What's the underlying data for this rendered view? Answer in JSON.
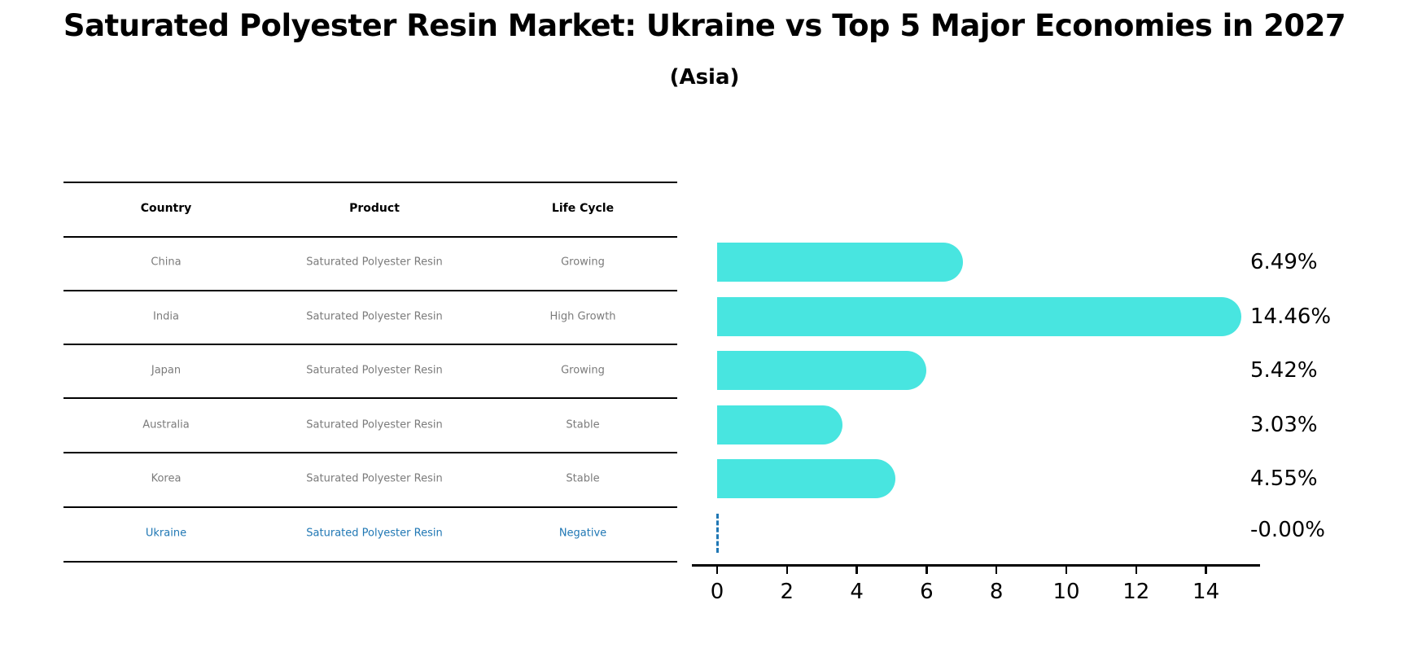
{
  "title": "Saturated Polyester Resin Market: Ukraine vs Top 5 Major Economies in 2027",
  "subtitle": "(Asia)",
  "colors": {
    "bar": "#48E5E0",
    "highlight_blue": "#1f77b4",
    "cell_text_gray": "#7b7b7b",
    "text_black": "#000000",
    "background": "#ffffff"
  },
  "table": {
    "headers": [
      "Country",
      "Product",
      "Life Cycle"
    ],
    "rows": [
      {
        "country": "China",
        "product": "Saturated Polyester Resin",
        "life_cycle": "Growing",
        "highlight": false
      },
      {
        "country": "India",
        "product": "Saturated Polyester Resin",
        "life_cycle": "High Growth",
        "highlight": false
      },
      {
        "country": "Japan",
        "product": "Saturated Polyester Resin",
        "life_cycle": "Growing",
        "highlight": false
      },
      {
        "country": "Australia",
        "product": "Saturated Polyester Resin",
        "life_cycle": "Stable",
        "highlight": false
      },
      {
        "country": "Korea",
        "product": "Saturated Polyester Resin",
        "life_cycle": "Stable",
        "highlight": false
      },
      {
        "country": "Ukraine",
        "product": "Saturated Polyester Resin",
        "life_cycle": "Negative",
        "highlight": true
      }
    ]
  },
  "chart_data": {
    "type": "bar",
    "orientation": "horizontal",
    "title": "Saturated Polyester Resin Market: Ukraine vs Top 5 Major Economies in 2027 (Asia)",
    "categories": [
      "China",
      "India",
      "Japan",
      "Australia",
      "Korea",
      "Ukraine"
    ],
    "values": [
      6.49,
      14.46,
      5.42,
      3.03,
      4.55,
      -0.0
    ],
    "value_labels": [
      "6.49%",
      "14.46%",
      "5.42%",
      "3.03%",
      "4.55%",
      "-0.00%"
    ],
    "x_ticks": [
      0,
      2,
      4,
      6,
      8,
      10,
      12,
      14
    ],
    "xlim": [
      0,
      15.5
    ],
    "xlabel": "",
    "ylabel": "",
    "grid": false,
    "legend": "none",
    "bar_color": "#48E5E0",
    "highlight_index": 5,
    "highlight_marker": "dashed zero line"
  }
}
